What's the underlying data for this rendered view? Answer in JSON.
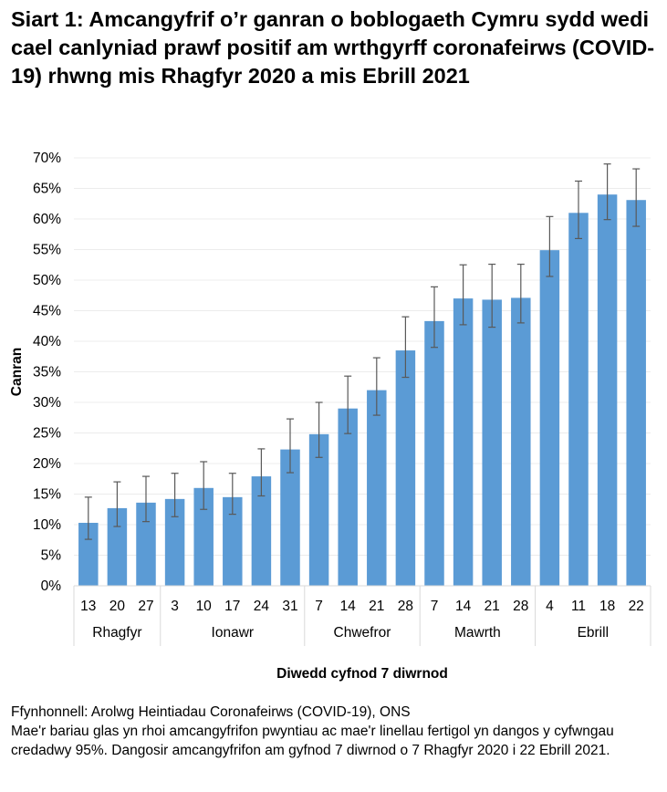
{
  "chart_data": {
    "type": "bar",
    "title": "Siart 1: Amcangyfrif o’r ganran o boblogaeth Cymru sydd wedi cael canlyniad prawf positif am wrthgyrff coronafeirws (COVID-19) rhwng mis Rhagfyr 2020 a mis Ebrill 2021",
    "xlabel": "Diwedd cyfnod 7 diwrnod",
    "ylabel": "Canran",
    "ylim": [
      0,
      70
    ],
    "yticks": [
      "0%",
      "5%",
      "10%",
      "15%",
      "20%",
      "25%",
      "30%",
      "35%",
      "40%",
      "45%",
      "50%",
      "55%",
      "60%",
      "65%",
      "70%"
    ],
    "grid": true,
    "bar_color": "#5b9bd5",
    "categories": [
      "13",
      "20",
      "27",
      "3",
      "10",
      "17",
      "24",
      "31",
      "7",
      "14",
      "21",
      "28",
      "7",
      "14",
      "21",
      "28",
      "4",
      "11",
      "18",
      "22"
    ],
    "groups": [
      {
        "label": "Rhagfyr",
        "count": 3
      },
      {
        "label": "Ionawr",
        "count": 5
      },
      {
        "label": "Chwefror",
        "count": 4
      },
      {
        "label": "Mawrth",
        "count": 4
      },
      {
        "label": "Ebrill",
        "count": 4
      }
    ],
    "values": [
      10.3,
      12.7,
      13.6,
      14.2,
      16.0,
      14.5,
      17.9,
      22.3,
      24.8,
      29.0,
      32.0,
      38.5,
      43.3,
      47.0,
      46.8,
      47.1,
      54.9,
      61.0,
      64.0,
      63.1
    ],
    "ci_lower": [
      7.6,
      9.7,
      10.5,
      11.3,
      12.5,
      11.7,
      14.7,
      18.5,
      21.0,
      24.9,
      27.9,
      34.1,
      39.0,
      42.7,
      42.3,
      43.0,
      50.6,
      56.8,
      59.9,
      58.8
    ],
    "ci_upper": [
      14.5,
      17.0,
      17.9,
      18.4,
      20.3,
      18.4,
      22.4,
      27.3,
      30.0,
      34.3,
      37.3,
      44.0,
      48.9,
      52.5,
      52.6,
      52.6,
      60.4,
      66.2,
      69.0,
      68.2
    ]
  },
  "notes": {
    "source": "Ffynhonnell: Arolwg Heintiadau Coronafeirws (COVID-19), ONS",
    "description": "Mae'r bariau glas yn rhoi amcangyfrifon pwyntiau ac mae'r linellau fertigol yn dangos y cyfwngau credadwy 95%. Dangosir amcangyfrifon am gyfnod 7 diwrnod o 7 Rhagfyr 2020 i 22 Ebrill 2021."
  }
}
